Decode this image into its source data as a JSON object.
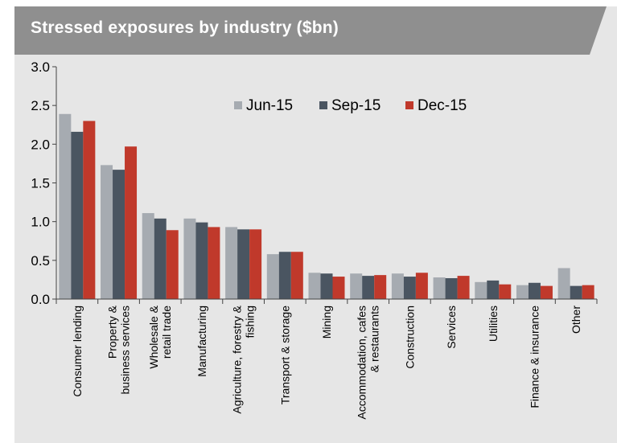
{
  "header": {
    "title": "Stressed exposures by industry ($bn)"
  },
  "colors": {
    "header_bg": "#8f8f8f",
    "panel_bg": "#e6e6e6",
    "Jun-15": "#a6abb1",
    "Sep-15": "#4a5561",
    "Dec-15": "#c0392b"
  },
  "chart_data": {
    "type": "bar",
    "title": "Stressed exposures by industry ($bn)",
    "xlabel": "",
    "ylabel": "",
    "ylim": [
      0,
      3
    ],
    "yticks": [
      "0.0",
      "0.5",
      "1.0",
      "1.5",
      "2.0",
      "2.5",
      "3.0"
    ],
    "grid": false,
    "legend_position": "top-center",
    "categories": [
      [
        "Consumer lending"
      ],
      [
        "Property &",
        "business services"
      ],
      [
        "Wholesale &",
        "retail trade"
      ],
      [
        "Manufacturing"
      ],
      [
        "Agriculture, forestry &",
        "fishing"
      ],
      [
        "Transport & storage"
      ],
      [
        "Mining"
      ],
      [
        "Accommodation, cafes",
        "& restaurants"
      ],
      [
        "Construction"
      ],
      [
        "Services"
      ],
      [
        "Utilities"
      ],
      [
        "Finance & insurance"
      ],
      [
        "Other"
      ]
    ],
    "series": [
      {
        "name": "Jun-15",
        "values": [
          2.39,
          1.73,
          1.11,
          1.04,
          0.93,
          0.58,
          0.34,
          0.33,
          0.33,
          0.28,
          0.22,
          0.18,
          0.4
        ]
      },
      {
        "name": "Sep-15",
        "values": [
          2.16,
          1.67,
          1.04,
          0.99,
          0.9,
          0.61,
          0.33,
          0.3,
          0.29,
          0.27,
          0.24,
          0.21,
          0.17
        ]
      },
      {
        "name": "Dec-15",
        "values": [
          2.3,
          1.97,
          0.89,
          0.93,
          0.9,
          0.61,
          0.29,
          0.31,
          0.34,
          0.3,
          0.19,
          0.17,
          0.18
        ]
      }
    ]
  }
}
